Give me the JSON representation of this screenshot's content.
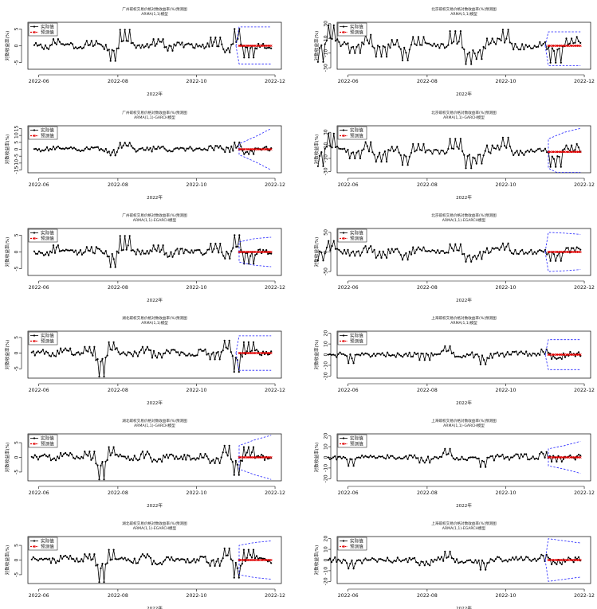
{
  "figure": {
    "xlabel": "2022年",
    "ylabel": "对数收益率(%)",
    "xticks": [
      "2022-06",
      "2022-08",
      "2022-10",
      "2022-12"
    ],
    "legend": {
      "actual": "实际值",
      "forecast": "预测值"
    },
    "colors": {
      "actual": "#000000",
      "forecast": "#e00000",
      "band": "#2222ff"
    }
  },
  "chart_data": [
    {
      "type": "line",
      "title": "广州碳权交易价格对数收益率(%)预测图",
      "subtitle": "ARMA(1,1)模型",
      "yticks": [
        -5,
        0,
        5
      ],
      "ylim": [
        -7,
        7
      ],
      "x_start": "2022-05-30",
      "forecast_start": "2022-11-06",
      "band_upper": 5.6,
      "band_lower": -5.4,
      "band_growth": false,
      "band_curve": [
        5.6,
        5.6,
        5.6
      ],
      "actual_sample": [
        0.2,
        -1.0,
        2.0,
        0.5,
        -0.8,
        1.5,
        0.3,
        -4.5,
        4.8,
        0.2,
        -0.5,
        2.0,
        -1.5,
        1.0,
        0.5,
        -0.3,
        2.5,
        -2.0,
        5.0,
        -3.5,
        0.6,
        -0.6
      ]
    },
    {
      "type": "line",
      "title": "北京碳权交易价格对数收益率(%)预测图",
      "subtitle": "ARMA(1,1)模型",
      "yticks": [
        -30,
        -10,
        10,
        30
      ],
      "ylim": [
        -32,
        32
      ],
      "x_start": "2022-05-10",
      "forecast_start": "2022-11-06",
      "band_upper": 19,
      "band_lower": -27,
      "band_growth": false,
      "band_curve": [
        19,
        19,
        19
      ],
      "actual_sample": [
        -22,
        28,
        5,
        -10,
        15,
        -15,
        8,
        -20,
        12,
        3,
        -3,
        20,
        -25,
        -18,
        10,
        22,
        -5,
        0,
        5,
        -23,
        10,
        12
      ]
    },
    {
      "type": "line",
      "title": "广州碳权交易价格对数收益率(%)预测图",
      "subtitle": "ARMA(1,1)-GARCH模型",
      "yticks": [
        -15,
        -10,
        -5,
        0,
        5,
        10,
        15
      ],
      "ylim": [
        -17,
        17
      ],
      "x_start": "2022-05-30",
      "forecast_start": "2022-11-06",
      "band_upper": 4,
      "band_lower": -4,
      "band_growth": true,
      "band_curve": [
        4,
        9,
        15
      ],
      "actual_sample": [
        0.2,
        -1.0,
        2.0,
        0.5,
        -0.8,
        1.5,
        0.3,
        -4.5,
        4.8,
        0.2,
        -0.5,
        2.0,
        -1.5,
        1.0,
        0.5,
        -0.3,
        2.5,
        -2.0,
        5.0,
        -3.5,
        0.6,
        -0.6
      ]
    },
    {
      "type": "line",
      "title": "北京碳权交易价格对数收益率(%)预测图",
      "subtitle": "ARMA(1,1)-GARCH模型",
      "yticks": [
        -30,
        -10,
        10,
        30
      ],
      "ylim": [
        -32,
        40
      ],
      "x_start": "2022-05-10",
      "forecast_start": "2022-11-06",
      "band_upper": 20,
      "band_lower": -25,
      "band_growth": true,
      "band_curve": [
        20,
        30,
        36
      ],
      "actual_sample": [
        -22,
        28,
        5,
        -10,
        15,
        -15,
        8,
        -20,
        12,
        3,
        -3,
        20,
        -25,
        -18,
        10,
        22,
        -5,
        0,
        5,
        -23,
        10,
        12
      ]
    },
    {
      "type": "line",
      "title": "广州碳权交易价格对数收益率(%)预测图",
      "subtitle": "ARMA(1,1)-EGARCH模型",
      "yticks": [
        -5,
        0,
        5
      ],
      "ylim": [
        -7,
        7
      ],
      "x_start": "2022-05-30",
      "forecast_start": "2022-11-06",
      "band_upper": 3,
      "band_lower": -3,
      "band_growth": true,
      "band_curve": [
        3,
        4,
        4.4
      ],
      "actual_sample": [
        0.2,
        -1.0,
        2.0,
        0.5,
        -0.8,
        1.5,
        0.3,
        -4.5,
        4.8,
        0.2,
        -0.5,
        2.0,
        -1.5,
        1.0,
        0.5,
        -0.3,
        2.5,
        -2.0,
        5.0,
        -3.5,
        0.6,
        -0.6
      ]
    },
    {
      "type": "line",
      "title": "北京碳权交易价格对数收益率(%)预测图",
      "subtitle": "ARMA(1,1)-EGARCH模型",
      "yticks": [
        -50,
        0,
        50
      ],
      "ylim": [
        -60,
        60
      ],
      "x_start": "2022-05-10",
      "forecast_start": "2022-11-06",
      "band_upper": 50,
      "band_lower": -50,
      "band_growth": false,
      "band_curve": [
        50,
        48,
        45
      ],
      "actual_sample": [
        -22,
        28,
        5,
        -10,
        15,
        -15,
        8,
        -20,
        12,
        3,
        -3,
        20,
        -25,
        -18,
        10,
        22,
        -5,
        0,
        5,
        -23,
        10,
        12
      ]
    },
    {
      "type": "line",
      "title": "湖北碳权交易价格对数收益率(%)预测图",
      "subtitle": "ARMA(1,1)模型",
      "yticks": [
        -5,
        0,
        5
      ],
      "ylim": [
        -8,
        7
      ],
      "x_start": "2022-05-28",
      "forecast_start": "2022-11-06",
      "band_upper": 5.5,
      "band_lower": -5.5,
      "band_growth": false,
      "band_curve": [
        5.5,
        5.5,
        5.5
      ],
      "actual_sample": [
        0.2,
        0.5,
        -1.0,
        1.5,
        -0.5,
        2.0,
        -7.5,
        3.5,
        0.3,
        -1.0,
        2.0,
        -1.5,
        1.0,
        0.3,
        -0.8,
        1.2,
        -2.0,
        4.0,
        -6.0,
        3.5,
        0.5,
        -0.5
      ]
    },
    {
      "type": "line",
      "title": "上海碳权交易价格对数收益率(%)预测图",
      "subtitle": "ARMA(1,1)模型",
      "yticks": [
        -20,
        -10,
        0,
        10,
        20
      ],
      "ylim": [
        -22,
        22
      ],
      "x_start": "2022-05-18",
      "forecast_start": "2022-11-06",
      "band_upper": 14,
      "band_lower": -14,
      "band_growth": false,
      "band_curve": [
        14,
        14,
        14
      ],
      "actual_sample": [
        0.0,
        0.5,
        -8.0,
        0.0,
        1.0,
        -0.5,
        0.0,
        2.0,
        -5.0,
        0.5,
        8.0,
        -2.0,
        0.0,
        -9.0,
        1.0,
        0.0,
        3.0,
        -1.0,
        5.0,
        -4.0,
        0.0,
        1.0
      ]
    },
    {
      "type": "line",
      "title": "湖北碳权交易价格对数收益率(%)预测图",
      "subtitle": "ARMA(1,1)-GARCH模型",
      "yticks": [
        -5,
        0,
        5
      ],
      "ylim": [
        -8,
        8
      ],
      "x_start": "2022-05-28",
      "forecast_start": "2022-11-06",
      "band_upper": 4,
      "band_lower": -4,
      "band_growth": true,
      "band_curve": [
        4,
        6,
        7.5
      ],
      "actual_sample": [
        0.2,
        0.5,
        -1.0,
        1.5,
        -0.5,
        2.0,
        -7.5,
        3.5,
        0.3,
        -1.0,
        2.0,
        -1.5,
        1.0,
        0.3,
        -0.8,
        1.2,
        -2.0,
        4.0,
        -6.0,
        3.5,
        0.5,
        -0.5
      ]
    },
    {
      "type": "line",
      "title": "上海碳权交易价格对数收益率(%)预测图",
      "subtitle": "ARMA(1,1)-GARCH模型",
      "yticks": [
        -20,
        -10,
        0,
        10,
        20
      ],
      "ylim": [
        -22,
        22
      ],
      "x_start": "2022-05-18",
      "forecast_start": "2022-11-06",
      "band_upper": 8,
      "band_lower": -8,
      "band_growth": true,
      "band_curve": [
        8,
        11,
        15
      ],
      "actual_sample": [
        0.0,
        0.5,
        -8.0,
        0.0,
        1.0,
        -0.5,
        0.0,
        2.0,
        -5.0,
        0.5,
        8.0,
        -2.0,
        0.0,
        -9.0,
        1.0,
        0.0,
        3.0,
        -1.0,
        5.0,
        -4.0,
        0.0,
        1.0
      ]
    },
    {
      "type": "line",
      "title": "湖北碳权交易价格对数收益率(%)预测图",
      "subtitle": "ARMA(1,1)-EGARCH模型",
      "yticks": [
        -5,
        0,
        5
      ],
      "ylim": [
        -8,
        8
      ],
      "x_start": "2022-05-28",
      "forecast_start": "2022-11-06",
      "band_upper": 5,
      "band_lower": -5,
      "band_growth": true,
      "band_curve": [
        5,
        6,
        6.5
      ],
      "actual_sample": [
        0.2,
        0.5,
        -1.0,
        1.5,
        -0.5,
        2.0,
        -7.5,
        3.5,
        0.3,
        -1.0,
        2.0,
        -1.5,
        1.0,
        0.3,
        -0.8,
        1.2,
        -2.0,
        4.0,
        -6.0,
        3.5,
        0.5,
        -0.5
      ]
    },
    {
      "type": "line",
      "title": "上海碳权交易价格对数收益率(%)预测图",
      "subtitle": "ARMA(1,1)-EGARCH模型",
      "yticks": [
        -20,
        -10,
        0,
        10,
        20
      ],
      "ylim": [
        -22,
        22
      ],
      "x_start": "2022-05-18",
      "forecast_start": "2022-11-06",
      "band_upper": 20,
      "band_lower": -20,
      "band_growth": false,
      "band_curve": [
        20,
        18,
        16
      ],
      "actual_sample": [
        0.0,
        0.5,
        -8.0,
        0.0,
        1.0,
        -0.5,
        0.0,
        2.0,
        -5.0,
        0.5,
        8.0,
        -2.0,
        0.0,
        -9.0,
        1.0,
        0.0,
        3.0,
        -1.0,
        5.0,
        -4.0,
        0.0,
        1.0
      ]
    }
  ]
}
